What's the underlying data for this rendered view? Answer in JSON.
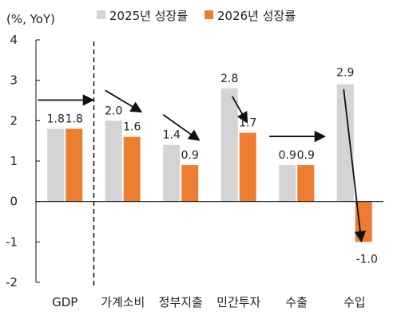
{
  "chart_data": {
    "type": "bar",
    "unit_label": "(%, YoY)",
    "categories": [
      "GDP",
      "가계소비",
      "정부지출",
      "민간투자",
      "수출",
      "수입"
    ],
    "series": [
      {
        "name": "2025년 성장률",
        "color": "#d4d4d4",
        "values": [
          1.8,
          2.0,
          1.4,
          2.8,
          0.9,
          2.9
        ]
      },
      {
        "name": "2026년 성장률",
        "color": "#ed7d31",
        "values": [
          1.8,
          1.6,
          0.9,
          1.7,
          0.9,
          -1.0
        ]
      }
    ],
    "ylim": [
      -2,
      4
    ],
    "yticks": [
      -2,
      -1,
      0,
      1,
      2,
      3,
      4
    ],
    "ytick_labels": [
      "-2",
      "-1",
      "0",
      "1",
      "2",
      "3",
      "4"
    ],
    "value_labels": [
      [
        "1.8",
        "1.8"
      ],
      [
        "2.0",
        "1.6"
      ],
      [
        "1.4",
        "0.9"
      ],
      [
        "2.8",
        "1.7"
      ],
      [
        "0.9",
        "0.9"
      ],
      [
        "2.9",
        "-1.0"
      ]
    ],
    "legend_position": "top",
    "grid": false,
    "annotations": {
      "divider_after_category": "GDP",
      "trend_arrows": true
    }
  }
}
